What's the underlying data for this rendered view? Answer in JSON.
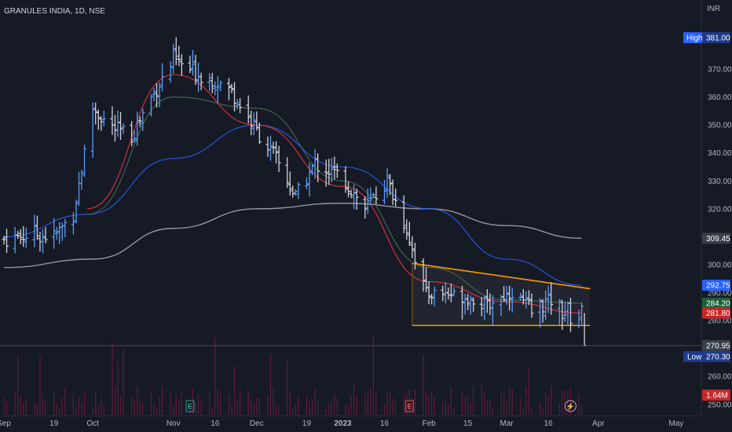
{
  "header": {
    "title": "GRANULES INDIA, 1D, NSE",
    "currency": "INR"
  },
  "price_axis": {
    "ticks": [
      "370.00",
      "360.00",
      "350.00",
      "340.00",
      "330.00",
      "320.00",
      "300.00",
      "290.00",
      "280.00",
      "260.00",
      "250.00"
    ],
    "high_label": "High",
    "high_value": "381.00",
    "low_label": "Low",
    "low_value": "270.30",
    "badges": [
      {
        "text": "309.45",
        "bg": "#3a3e48",
        "fg": "#d1d4dc"
      },
      {
        "text": "292.75",
        "bg": "#2962ff",
        "fg": "#ffffff"
      },
      {
        "text": "284.20",
        "bg": "#1e5f3a",
        "fg": "#ffffff"
      },
      {
        "text": "281.80",
        "bg": "#c62828",
        "fg": "#ffffff"
      },
      {
        "text": "270.95",
        "bg": "#3a3e48",
        "fg": "#d1d4dc"
      },
      {
        "text": "1.64M",
        "bg": "#c62828",
        "fg": "#ffffff"
      }
    ]
  },
  "time_axis": {
    "labels": [
      "Sep",
      "19",
      "Oct",
      "Nov",
      "16",
      "Dec",
      "19",
      "2023",
      "16",
      "Feb",
      "15",
      "Mar",
      "16",
      "Apr",
      "May"
    ]
  },
  "events": [
    {
      "label": "E",
      "color": "#26a69a"
    },
    {
      "label": "E",
      "color": "#ef5350"
    },
    {
      "label": "⚡",
      "color": "#b2b5be"
    }
  ],
  "colors": {
    "background": "#161a25",
    "bar_up": "#5b9cf6",
    "bar_down": "#d1d4dc",
    "ema_red": "#f23645",
    "ema_green": "#4b7050",
    "ema_blue": "#2962ff",
    "sma_grey": "#b2b5be",
    "trendline": "#ff9800",
    "volume": "#e91e63"
  },
  "chart_data": {
    "type": "ohlc",
    "title": "GRANULES INDIA, 1D, NSE",
    "ylabel": "INR",
    "ylim": [
      247,
      388
    ],
    "x_range": [
      "2022-09-01",
      "2023-05-05"
    ],
    "grid": false,
    "highest": 381.0,
    "lowest": 270.3,
    "anchors": [
      {
        "date": "2022-09-01",
        "close": 309
      },
      {
        "date": "2022-09-12",
        "close": 311
      },
      {
        "date": "2022-09-19",
        "close": 310
      },
      {
        "date": "2022-09-26",
        "close": 318
      },
      {
        "date": "2022-10-03",
        "close": 356
      },
      {
        "date": "2022-10-10",
        "close": 349
      },
      {
        "date": "2022-10-17",
        "close": 346
      },
      {
        "date": "2022-10-24",
        "close": 360
      },
      {
        "date": "2022-11-01",
        "close": 373
      },
      {
        "date": "2022-11-08",
        "close": 369
      },
      {
        "date": "2022-11-16",
        "close": 366
      },
      {
        "date": "2022-11-22",
        "close": 362
      },
      {
        "date": "2022-12-01",
        "close": 348
      },
      {
        "date": "2022-12-08",
        "close": 338
      },
      {
        "date": "2022-12-15",
        "close": 324
      },
      {
        "date": "2022-12-22",
        "close": 336
      },
      {
        "date": "2023-01-01",
        "close": 331
      },
      {
        "date": "2023-01-09",
        "close": 320
      },
      {
        "date": "2023-01-17",
        "close": 330
      },
      {
        "date": "2023-01-24",
        "close": 313
      },
      {
        "date": "2023-01-31",
        "close": 289
      },
      {
        "date": "2023-02-06",
        "close": 290
      },
      {
        "date": "2023-02-15",
        "close": 287
      },
      {
        "date": "2023-02-22",
        "close": 284
      },
      {
        "date": "2023-03-03",
        "close": 290
      },
      {
        "date": "2023-03-10",
        "close": 282
      },
      {
        "date": "2023-03-16",
        "close": 286
      },
      {
        "date": "2023-03-24",
        "close": 281
      }
    ],
    "series": [
      {
        "name": "309.45",
        "kind": "sma",
        "values_at": [
          [
            "2022-09-01",
            299
          ],
          [
            "2022-10-03",
            302
          ],
          [
            "2022-11-01",
            313
          ],
          [
            "2022-12-01",
            320
          ],
          [
            "2023-01-01",
            322
          ],
          [
            "2023-02-01",
            320
          ],
          [
            "2023-03-01",
            314
          ],
          [
            "2023-03-28",
            309.45
          ]
        ]
      },
      {
        "name": "292.75",
        "kind": "ema",
        "values_at": [
          [
            "2022-09-01",
            310
          ],
          [
            "2022-10-01",
            318
          ],
          [
            "2022-11-01",
            338
          ],
          [
            "2022-12-01",
            350
          ],
          [
            "2023-01-01",
            335
          ],
          [
            "2023-02-01",
            320
          ],
          [
            "2023-03-01",
            302
          ],
          [
            "2023-03-28",
            292.75
          ]
        ]
      },
      {
        "name": "284.20",
        "kind": "ema",
        "values_at": [
          [
            "2022-10-01",
            318
          ],
          [
            "2022-11-01",
            360
          ],
          [
            "2022-12-01",
            356
          ],
          [
            "2023-01-01",
            330
          ],
          [
            "2023-02-01",
            299
          ],
          [
            "2023-03-01",
            286
          ],
          [
            "2023-03-28",
            284.2
          ]
        ]
      },
      {
        "name": "281.80",
        "kind": "ema",
        "values_at": [
          [
            "2022-10-01",
            320
          ],
          [
            "2022-11-01",
            368
          ],
          [
            "2022-12-01",
            350
          ],
          [
            "2023-01-01",
            328
          ],
          [
            "2023-02-01",
            294
          ],
          [
            "2023-03-01",
            285
          ],
          [
            "2023-03-28",
            281.8
          ]
        ]
      }
    ],
    "patterns": [
      {
        "kind": "descending_triangle",
        "upper_start": [
          "2023-01-26",
          300.5
        ],
        "upper_end": [
          "2023-03-31",
          291.5
        ],
        "lower_level": 278.2,
        "lower_start": "2023-01-26",
        "lower_end": "2023-03-31"
      }
    ],
    "last_close": 270.95,
    "volume_last": "1.64M"
  }
}
